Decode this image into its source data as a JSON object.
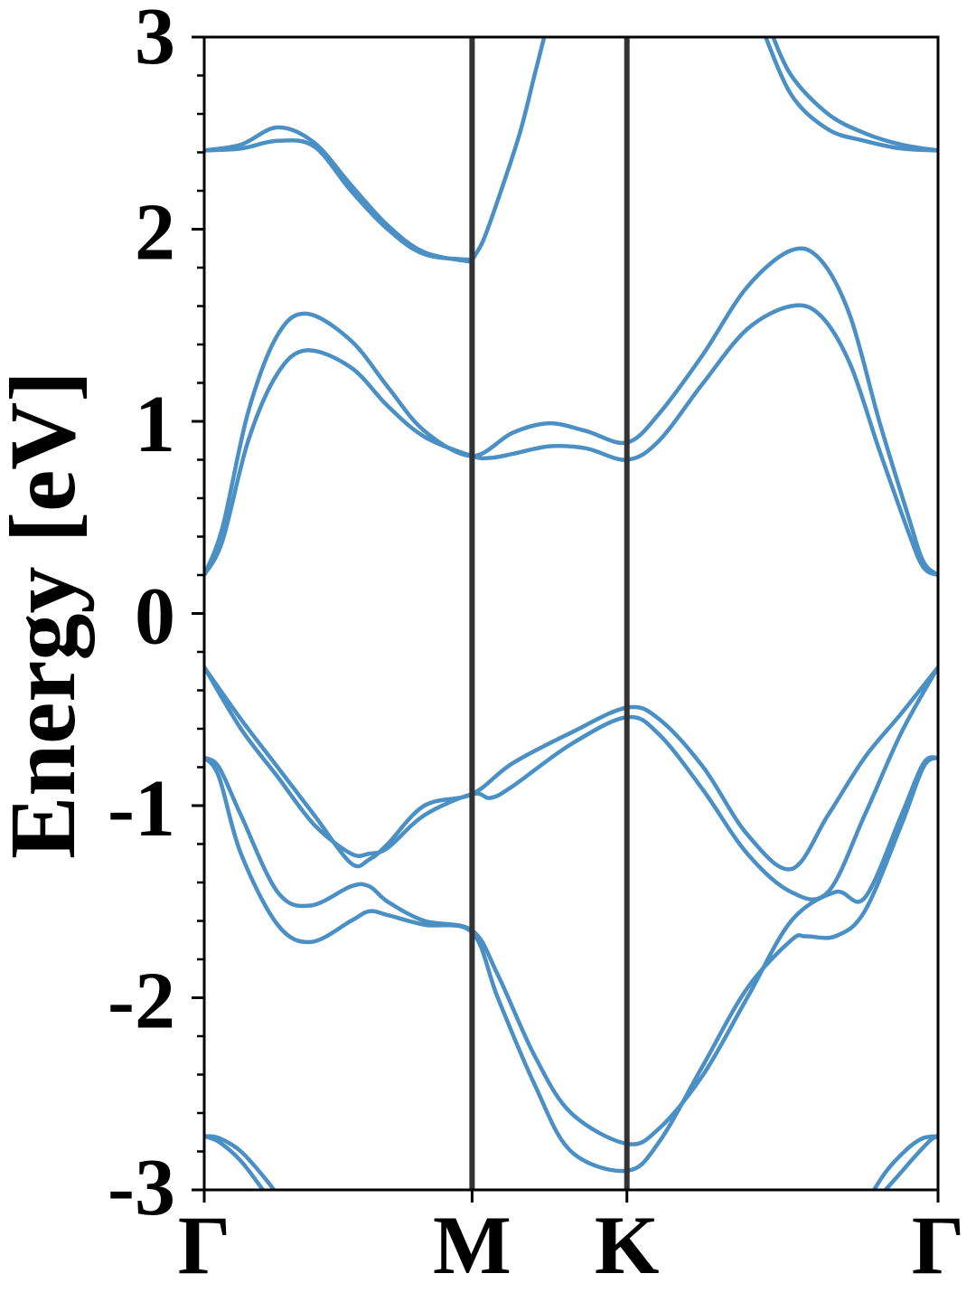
{
  "chart_data": {
    "type": "line",
    "title": "",
    "xlabel": "",
    "ylabel": "Energy [eV]",
    "ylim": [
      -3,
      3
    ],
    "xlim": [
      0,
      1
    ],
    "y_ticks": [
      "3",
      "2",
      "1",
      "0",
      "-1",
      "-2",
      "-3"
    ],
    "y_tick_values": [
      3,
      2,
      1,
      0,
      -1,
      -2,
      -3
    ],
    "high_symmetry_points": [
      {
        "label": "Γ",
        "x": 0.0
      },
      {
        "label": "M",
        "x": 0.365
      },
      {
        "label": "K",
        "x": 0.576
      },
      {
        "label": "Γ",
        "x": 1.0
      }
    ],
    "grid": false,
    "line_color": "#4a90c4",
    "symmetry_line_color": "#333333",
    "series": [
      {
        "x": [
          0.0,
          0.05,
          0.1,
          0.15,
          0.2,
          0.25,
          0.3,
          0.365
        ],
        "values": [
          2.41,
          2.44,
          2.53,
          2.45,
          2.23,
          2.02,
          1.88,
          1.83
        ]
      },
      {
        "x": [
          0.0,
          0.05,
          0.1,
          0.15,
          0.2,
          0.25,
          0.3,
          0.365
        ],
        "values": [
          2.41,
          2.42,
          2.46,
          2.43,
          2.2,
          2.0,
          1.87,
          1.84
        ]
      },
      {
        "x": [
          0.365,
          0.38,
          0.4,
          0.43,
          0.45,
          0.47
        ],
        "values": [
          1.84,
          1.94,
          2.15,
          2.5,
          2.8,
          3.1
        ]
      },
      {
        "x": [
          0.77,
          0.8,
          0.85,
          0.9,
          0.95,
          1.0
        ],
        "values": [
          3.05,
          2.8,
          2.6,
          2.5,
          2.44,
          2.41
        ]
      },
      {
        "x": [
          0.76,
          0.8,
          0.85,
          0.9,
          0.95,
          1.0
        ],
        "values": [
          3.05,
          2.7,
          2.52,
          2.46,
          2.42,
          2.41
        ]
      },
      {
        "x": [
          0.0,
          0.025,
          0.06,
          0.1,
          0.14,
          0.2,
          0.25,
          0.3,
          0.365,
          0.42,
          0.47,
          0.52,
          0.576,
          0.62,
          0.68,
          0.74,
          0.8,
          0.84,
          0.88,
          0.92,
          0.96,
          0.98,
          1.0
        ],
        "values": [
          0.2,
          0.45,
          1.05,
          1.45,
          1.56,
          1.42,
          1.18,
          0.95,
          0.82,
          0.94,
          0.99,
          0.95,
          0.89,
          1.04,
          1.35,
          1.7,
          1.89,
          1.84,
          1.55,
          1.0,
          0.5,
          0.27,
          0.2
        ]
      },
      {
        "x": [
          0.0,
          0.025,
          0.06,
          0.1,
          0.14,
          0.2,
          0.25,
          0.3,
          0.365,
          0.39,
          0.42,
          0.47,
          0.52,
          0.576,
          0.62,
          0.68,
          0.74,
          0.8,
          0.84,
          0.88,
          0.92,
          0.96,
          0.98,
          1.0
        ],
        "values": [
          0.2,
          0.38,
          0.9,
          1.25,
          1.37,
          1.28,
          1.08,
          0.92,
          0.82,
          0.81,
          0.83,
          0.87,
          0.86,
          0.8,
          0.9,
          1.2,
          1.48,
          1.6,
          1.55,
          1.3,
          0.85,
          0.42,
          0.24,
          0.2
        ]
      },
      {
        "x": [
          0.0,
          0.05,
          0.1,
          0.15,
          0.2,
          0.225,
          0.25,
          0.3,
          0.365,
          0.42,
          0.5,
          0.576,
          0.62,
          0.68,
          0.74,
          0.8,
          0.85,
          0.9,
          0.95,
          1.0
        ],
        "values": [
          -0.28,
          -0.55,
          -0.8,
          -1.05,
          -1.3,
          -1.28,
          -1.2,
          -1.0,
          -0.94,
          -0.78,
          -0.62,
          -0.49,
          -0.55,
          -0.8,
          -1.15,
          -1.33,
          -1.05,
          -0.75,
          -0.52,
          -0.28
        ]
      },
      {
        "x": [
          0.0,
          0.05,
          0.1,
          0.15,
          0.2,
          0.225,
          0.25,
          0.3,
          0.365,
          0.39,
          0.42,
          0.5,
          0.576,
          0.62,
          0.68,
          0.74,
          0.8,
          0.85,
          0.9,
          0.95,
          1.0
        ],
        "values": [
          -0.28,
          -0.6,
          -0.85,
          -1.1,
          -1.25,
          -1.25,
          -1.22,
          -1.05,
          -0.94,
          -0.96,
          -0.9,
          -0.68,
          -0.54,
          -0.63,
          -0.92,
          -1.25,
          -1.45,
          -1.45,
          -1.05,
          -0.62,
          -0.28
        ]
      },
      {
        "x": [
          0.0,
          0.02,
          0.05,
          0.1,
          0.145,
          0.2,
          0.225,
          0.25,
          0.3,
          0.365,
          0.4,
          0.45,
          0.5,
          0.576,
          0.62,
          0.68,
          0.74,
          0.8,
          0.86,
          0.9,
          0.95,
          0.98,
          1.0
        ],
        "values": [
          -0.75,
          -0.8,
          -1.05,
          -1.45,
          -1.52,
          -1.42,
          -1.42,
          -1.5,
          -1.6,
          -1.65,
          -1.88,
          -2.3,
          -2.6,
          -2.76,
          -2.68,
          -2.4,
          -2.0,
          -1.6,
          -1.45,
          -1.48,
          -1.05,
          -0.78,
          -0.75
        ]
      },
      {
        "x": [
          0.0,
          0.02,
          0.05,
          0.1,
          0.145,
          0.2,
          0.225,
          0.25,
          0.3,
          0.365,
          0.4,
          0.45,
          0.5,
          0.576,
          0.62,
          0.68,
          0.74,
          0.8,
          0.82,
          0.86,
          0.9,
          0.95,
          0.98,
          1.0
        ],
        "values": [
          -0.75,
          -0.85,
          -1.25,
          -1.62,
          -1.71,
          -1.6,
          -1.55,
          -1.57,
          -1.62,
          -1.66,
          -2.0,
          -2.45,
          -2.8,
          -2.9,
          -2.75,
          -2.35,
          -1.95,
          -1.7,
          -1.68,
          -1.68,
          -1.55,
          -1.1,
          -0.8,
          -0.75
        ]
      },
      {
        "x": [
          0.0,
          0.02,
          0.05,
          0.085,
          0.11
        ],
        "values": [
          -2.72,
          -2.73,
          -2.8,
          -2.95,
          -3.08
        ]
      },
      {
        "x": [
          0.0,
          0.02,
          0.05,
          0.08,
          0.1
        ],
        "values": [
          -2.72,
          -2.75,
          -2.85,
          -3.0,
          -3.1
        ]
      },
      {
        "x": [
          0.9,
          0.93,
          0.96,
          0.98,
          1.0
        ],
        "values": [
          -3.08,
          -2.9,
          -2.78,
          -2.73,
          -2.72
        ]
      },
      {
        "x": [
          0.905,
          0.94,
          0.97,
          0.99,
          1.0
        ],
        "values": [
          -3.1,
          -2.95,
          -2.82,
          -2.74,
          -2.72
        ]
      }
    ]
  }
}
